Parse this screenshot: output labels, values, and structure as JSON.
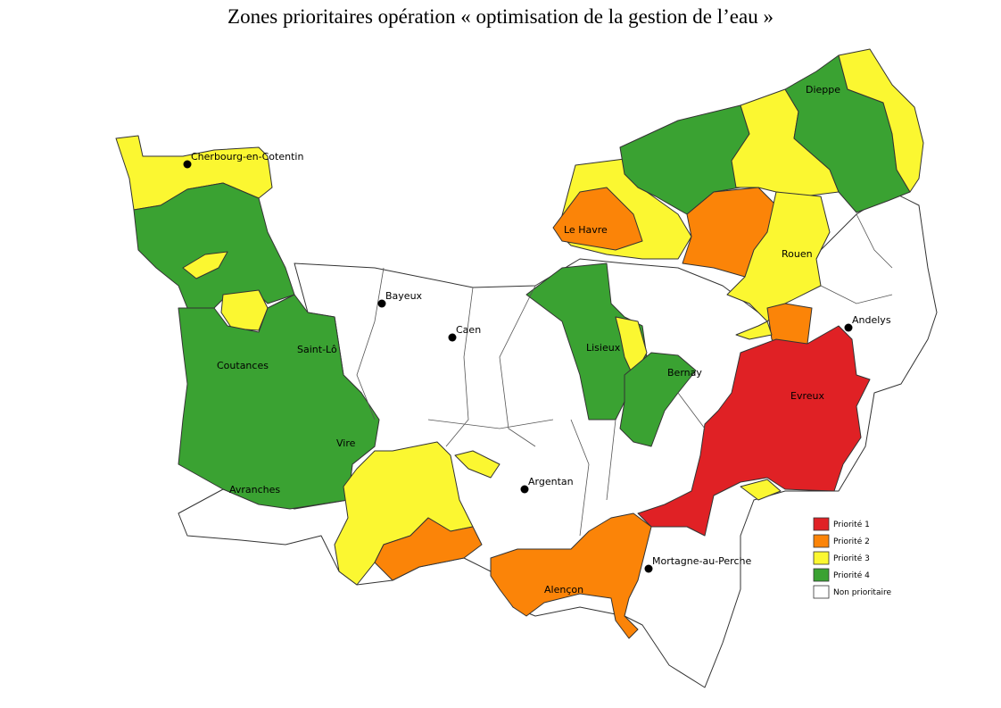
{
  "title": "Zones prioritaires opération « optimisation de la gestion de l’eau »",
  "cities": [
    {
      "name": "Cherbourg-en-Cotentin"
    },
    {
      "name": "Dieppe"
    },
    {
      "name": "Le Havre"
    },
    {
      "name": "Rouen"
    },
    {
      "name": "Bayeux"
    },
    {
      "name": "Caen"
    },
    {
      "name": "Lisieux"
    },
    {
      "name": "Bernay"
    },
    {
      "name": "Andelys"
    },
    {
      "name": "Evreux"
    },
    {
      "name": "Saint-Lô"
    },
    {
      "name": "Coutances"
    },
    {
      "name": "Vire"
    },
    {
      "name": "Avranches"
    },
    {
      "name": "Argentan"
    },
    {
      "name": "Mortagne-au-Perche"
    },
    {
      "name": "Alençon"
    }
  ],
  "legend": [
    {
      "label": "Priorité 1",
      "color": "#e02125"
    },
    {
      "label": "Priorité 2",
      "color": "#fb8408"
    },
    {
      "label": "Priorité 3",
      "color": "#fbf731"
    },
    {
      "label": "Priorité 4",
      "color": "#3aa232"
    },
    {
      "label": "Non prioritaire",
      "color": "#ffffff"
    }
  ]
}
